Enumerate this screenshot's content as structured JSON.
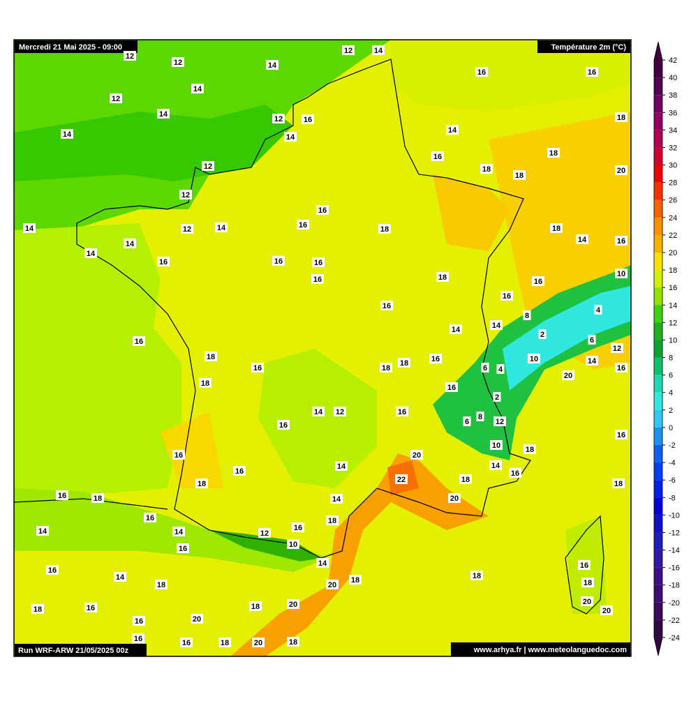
{
  "header": {
    "date": "Mercredi 21 Mai 2025 - 09:00",
    "variable": "Température 2m (°C)",
    "run": "Run WRF-ARW 21/05/2025 00z",
    "credits": "www.arhya.fr | www.meteolanguedoc.com"
  },
  "map_labels": [
    12,
    14,
    12,
    12,
    14,
    16,
    16,
    14,
    12,
    14,
    12,
    16,
    18,
    14,
    14,
    14,
    16,
    18,
    12,
    18,
    18,
    20,
    12,
    14,
    12,
    14,
    16,
    16,
    18,
    18,
    14,
    16,
    14,
    14,
    16,
    16,
    16,
    10,
    16,
    18,
    16,
    16,
    16,
    4,
    8,
    14,
    14,
    2,
    6,
    16,
    12,
    18,
    10,
    14,
    16,
    16,
    18,
    18,
    16,
    6,
    4,
    20,
    18,
    16,
    2,
    14,
    12,
    16,
    6,
    8,
    12,
    16,
    16,
    10,
    18,
    16,
    20,
    14,
    14,
    16,
    16,
    22,
    18,
    18,
    18,
    16,
    18,
    20,
    14,
    16,
    18,
    16,
    14,
    12,
    14,
    10,
    16,
    14,
    16,
    16,
    14,
    20,
    18,
    18,
    18,
    18,
    20,
    18,
    16,
    18,
    20,
    20,
    20,
    16,
    16,
    16,
    18,
    20,
    18
  ],
  "colorbar": {
    "ticks": [
      42,
      40,
      38,
      36,
      34,
      32,
      30,
      28,
      26,
      24,
      22,
      20,
      18,
      16,
      14,
      12,
      10,
      8,
      6,
      4,
      2,
      0,
      -2,
      -4,
      -6,
      -8,
      -10,
      -12,
      -14,
      -16,
      -18,
      -20,
      -22,
      -24
    ],
    "colors": [
      "#400040",
      "#500050",
      "#700060",
      "#900060",
      "#b00050",
      "#d00030",
      "#f00000",
      "#f83000",
      "#f86000",
      "#f89000",
      "#f8b000",
      "#f8e000",
      "#d0f000",
      "#90e000",
      "#40d010",
      "#20b020",
      "#10a030",
      "#10c070",
      "#20d8b0",
      "#30e8e0",
      "#30c8f0",
      "#2090f0",
      "#1060f0",
      "#0040f0",
      "#0020e8",
      "#0000d8",
      "#1010c8",
      "#2020b8",
      "#3018a0",
      "#3a1088",
      "#3c0d70",
      "#3a0a5a",
      "#2d0a40"
    ]
  }
}
